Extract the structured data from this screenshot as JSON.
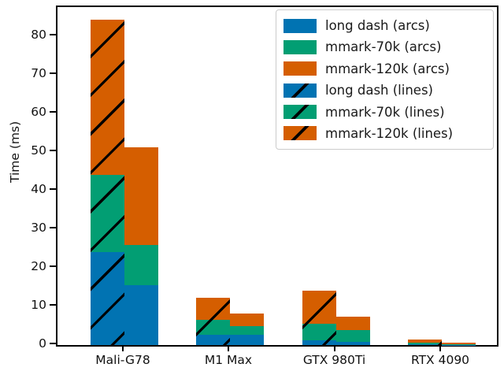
{
  "figure": {
    "background": "#ffffff"
  },
  "chart_data": {
    "type": "bar",
    "variant": "grouped-stacked",
    "title": "",
    "xlabel": "",
    "ylabel": "Time (ms)",
    "ylim": [
      0,
      87.5
    ],
    "yticks": [
      0,
      10,
      20,
      30,
      40,
      50,
      60,
      70,
      80
    ],
    "grid": false,
    "legend_position": "upper-right",
    "categories": [
      "Mali-G78",
      "M1 Max",
      "GTX 980Ti",
      "RTX 4090"
    ],
    "palette": {
      "blue": "#0173b2",
      "green": "#029e73",
      "orange": "#d55e00"
    },
    "bar_arrangement": {
      "left_bar_group": "lines",
      "right_bar_group": "arcs",
      "left_bar_hatched": true,
      "stack_order_bottom_to_top": [
        "blue",
        "green",
        "orange"
      ]
    },
    "series": [
      {
        "name": "long dash (arcs)",
        "group": "arcs",
        "color": "#0173b2",
        "hatched": false,
        "values": [
          15.5,
          2.7,
          0.8,
          0.1
        ]
      },
      {
        "name": "mmark-70k (arcs)",
        "group": "arcs",
        "color": "#029e73",
        "hatched": false,
        "values": [
          10.5,
          2.2,
          3.0,
          0.15
        ]
      },
      {
        "name": "mmark-120k (arcs)",
        "group": "arcs",
        "color": "#d55e00",
        "hatched": false,
        "values": [
          25.2,
          3.2,
          3.5,
          0.3
        ]
      },
      {
        "name": "long dash (lines)",
        "group": "lines",
        "color": "#0173b2",
        "hatched": true,
        "values": [
          24.0,
          2.7,
          1.2,
          0.2
        ]
      },
      {
        "name": "mmark-70k (lines)",
        "group": "lines",
        "color": "#029e73",
        "hatched": true,
        "values": [
          20.0,
          3.9,
          4.4,
          0.4
        ]
      },
      {
        "name": "mmark-120k (lines)",
        "group": "lines",
        "color": "#d55e00",
        "hatched": true,
        "values": [
          40.3,
          5.7,
          8.5,
          0.8
        ]
      }
    ],
    "stack_totals": {
      "lines": [
        84.3,
        12.3,
        14.1,
        1.4
      ],
      "arcs": [
        51.2,
        8.1,
        7.3,
        0.55
      ]
    },
    "legend_entries": [
      "long dash (arcs)",
      "mmark-70k (arcs)",
      "mmark-120k (arcs)",
      "long dash (lines)",
      "mmark-70k (lines)",
      "mmark-120k (lines)"
    ]
  }
}
